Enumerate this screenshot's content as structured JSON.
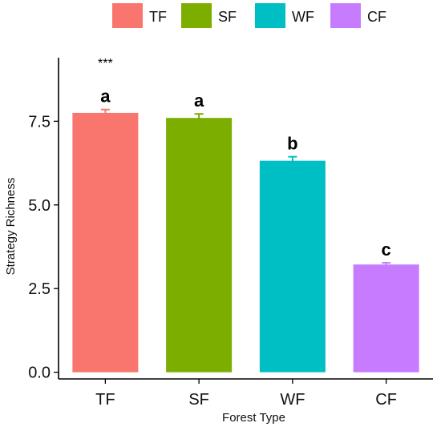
{
  "chart_data": {
    "type": "bar",
    "categories": [
      "TF",
      "SF",
      "WF",
      "CF"
    ],
    "values": [
      7.75,
      7.6,
      6.32,
      3.22
    ],
    "errors": [
      0.1,
      0.12,
      0.12,
      0.05
    ],
    "colors": [
      "#F8766D",
      "#7CAE00",
      "#00BFC4",
      "#C77CFF"
    ],
    "significance_letters": [
      "a",
      "a",
      "b",
      "c"
    ],
    "overall_significance": "***",
    "xlabel": "Forest Type",
    "ylabel": "Strategy Richness",
    "ylim": [
      -0.2,
      9.4
    ],
    "yticks": [
      0,
      2.5,
      5,
      7.5
    ],
    "ytick_labels": [
      "0.0",
      "2.5",
      "5.0",
      "7.5"
    ],
    "legend": {
      "position": "top",
      "entries": [
        "TF",
        "SF",
        "WF",
        "CF"
      ]
    },
    "grid": false
  }
}
